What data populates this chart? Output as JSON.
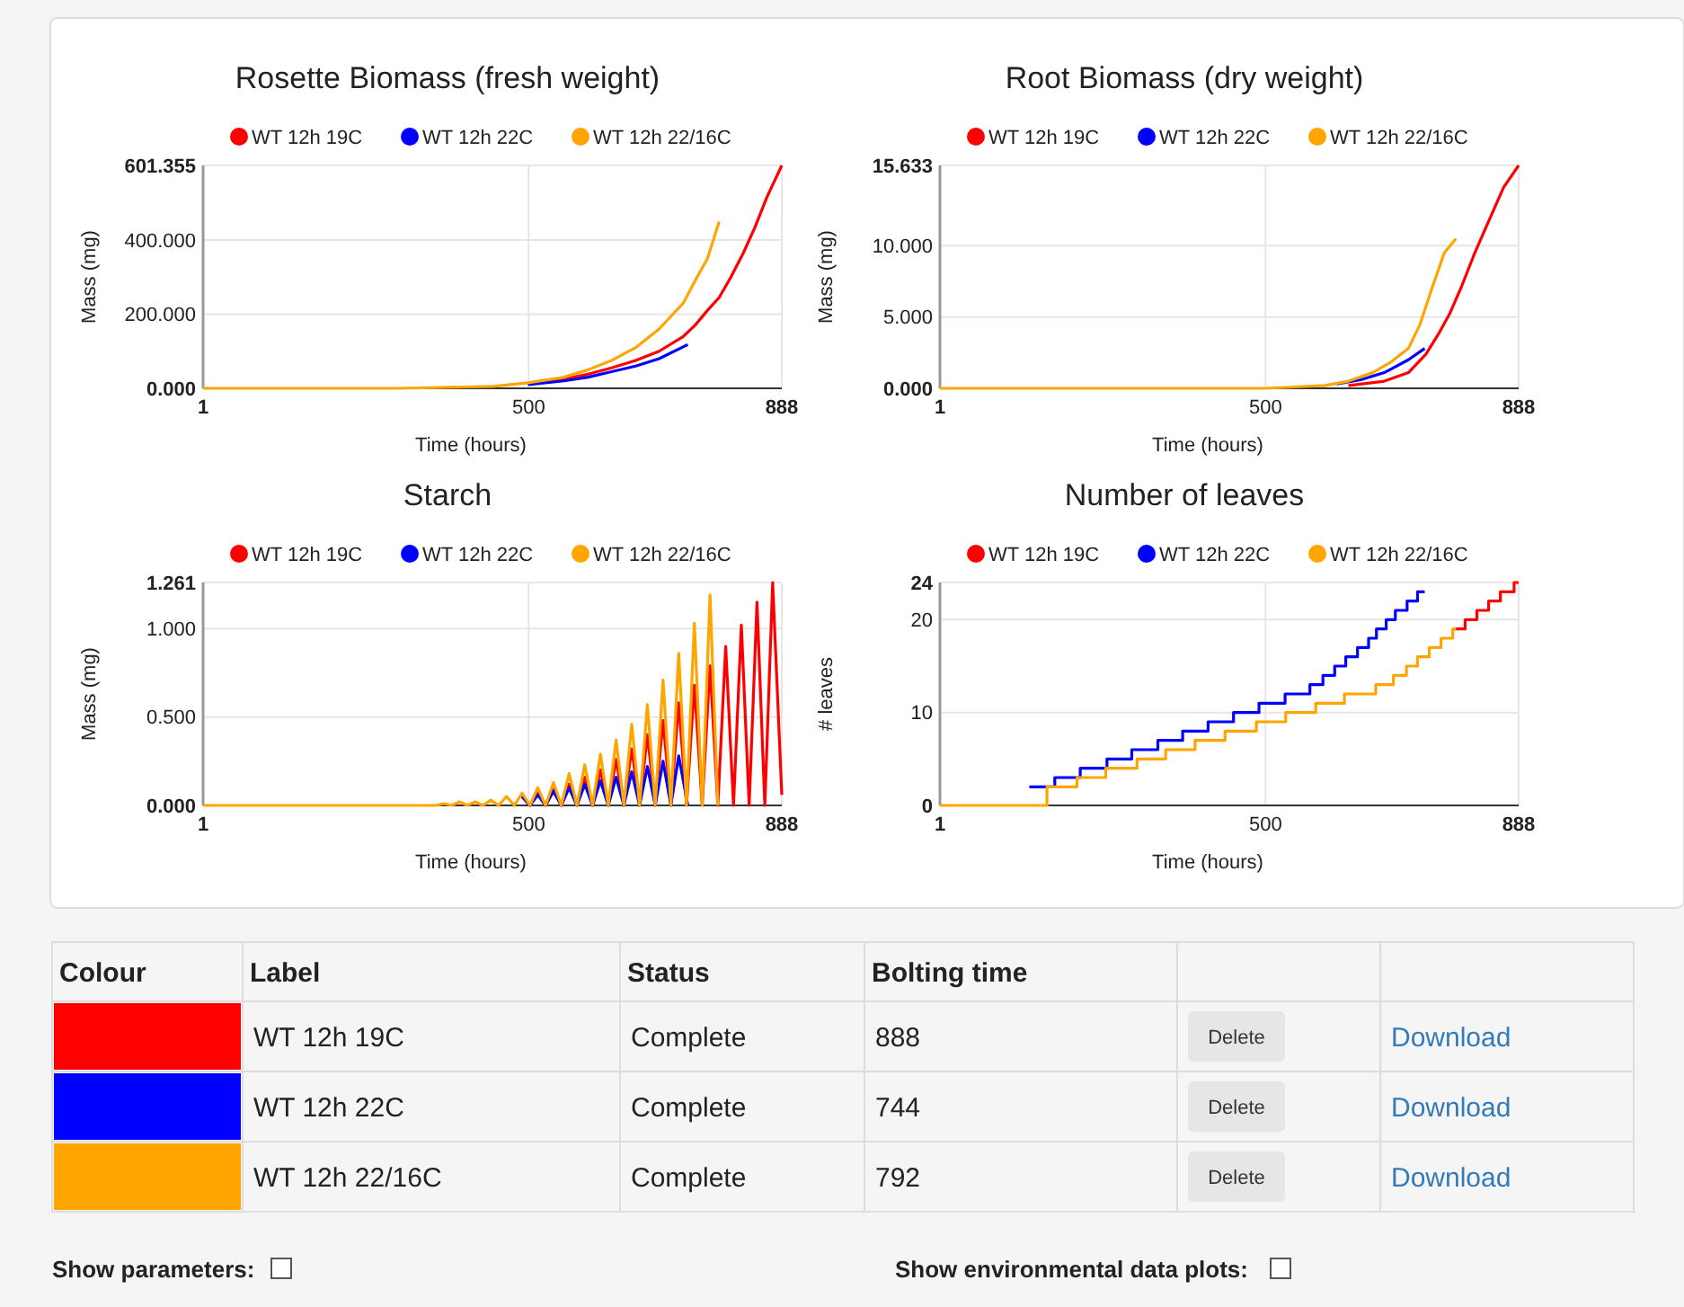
{
  "chart_data": [
    {
      "type": "line",
      "title": "Rosette Biomass (fresh weight)",
      "xlabel": "Time (hours)",
      "ylabel": "Mass (mg)",
      "legend": "top",
      "grid": true,
      "xlim": [
        1,
        888
      ],
      "xticks": [
        1,
        500,
        888
      ],
      "ylim": [
        0,
        601.355
      ],
      "yticks": [
        {
          "value": 0,
          "label": "0.000"
        },
        {
          "value": 200,
          "label": "200.000"
        },
        {
          "value": 400,
          "label": "400.000"
        },
        {
          "value": 601.355,
          "label": "601.355"
        }
      ],
      "series": [
        {
          "name": "WT 12h 19C",
          "color": "#ff0000",
          "x": [
            499,
            554,
            591,
            627,
            664,
            700,
            737,
            755,
            774,
            792,
            810,
            829,
            847,
            865,
            888
          ],
          "values": [
            13,
            25,
            38,
            55,
            75,
            100,
            140,
            170,
            210,
            245,
            300,
            365,
            435,
            515,
            601.355
          ]
        },
        {
          "name": "WT 12h 22C",
          "color": "#0000ff",
          "x": [
            499,
            554,
            591,
            627,
            664,
            700,
            744
          ],
          "values": [
            10,
            20,
            30,
            45,
            60,
            80,
            118
          ]
        },
        {
          "name": "WT 12h 22/16C",
          "color": "#ffa500",
          "x": [
            1,
            300,
            445,
            499,
            554,
            591,
            627,
            664,
            700,
            737,
            755,
            774,
            792
          ],
          "values": [
            0,
            0,
            5,
            15,
            30,
            50,
            75,
            110,
            160,
            230,
            290,
            350,
            450
          ]
        }
      ]
    },
    {
      "type": "line",
      "title": "Root Biomass (dry weight)",
      "xlabel": "Time (hours)",
      "ylabel": "Mass (mg)",
      "legend": "top",
      "grid": true,
      "xlim": [
        1,
        888
      ],
      "xticks": [
        1,
        500,
        888
      ],
      "ylim": [
        0,
        15.633
      ],
      "yticks": [
        {
          "value": 0,
          "label": "0.000"
        },
        {
          "value": 5,
          "label": "5.000"
        },
        {
          "value": 10,
          "label": "10.000"
        },
        {
          "value": 15.633,
          "label": "15.633"
        }
      ],
      "series": [
        {
          "name": "WT 12h 19C",
          "color": "#ff0000",
          "x": [
            627,
            682,
            719,
            746,
            765,
            783,
            801,
            819,
            837,
            865,
            888
          ],
          "values": [
            0.2,
            0.5,
            1.1,
            2.4,
            3.8,
            5.3,
            7.2,
            9.3,
            11.2,
            14.1,
            15.633
          ]
        },
        {
          "name": "WT 12h 22C",
          "color": "#0000ff",
          "x": [
            609,
            646,
            682,
            719,
            744
          ],
          "values": [
            0.3,
            0.6,
            1.1,
            2,
            2.8
          ]
        },
        {
          "name": "WT 12h 22/16C",
          "color": "#ffa500",
          "x": [
            1,
            500,
            591,
            627,
            664,
            691,
            719,
            737,
            755,
            774,
            792
          ],
          "values": [
            0,
            0,
            0.2,
            0.5,
            1.1,
            1.8,
            2.8,
            4.5,
            7,
            9.5,
            10.5
          ]
        }
      ]
    },
    {
      "type": "line",
      "title": "Starch",
      "xlabel": "Time (hours)",
      "ylabel": "Mass (mg)",
      "legend": "top",
      "grid": true,
      "xlim": [
        1,
        888
      ],
      "xticks": [
        1,
        500,
        888
      ],
      "ylim": [
        0,
        1.261
      ],
      "yticks": [
        {
          "value": 0,
          "label": "0.000"
        },
        {
          "value": 0.5,
          "label": "0.500"
        },
        {
          "value": 1,
          "label": "1.000"
        },
        {
          "value": 1.261,
          "label": "1.261"
        }
      ],
      "series": [
        {
          "name": "WT 12h 19C",
          "color": "#ff0000",
          "x": [
            490,
            502,
            514,
            526,
            538,
            550,
            562,
            574,
            586,
            598,
            610,
            622,
            634,
            646,
            658,
            670,
            682,
            694,
            706,
            718,
            730,
            742,
            754,
            766,
            778,
            790,
            802,
            814,
            826,
            838,
            850,
            862,
            874,
            888
          ],
          "values": [
            0.05,
            0,
            0.07,
            0,
            0.09,
            0,
            0.12,
            0,
            0.16,
            0,
            0.2,
            0,
            0.26,
            0,
            0.32,
            0,
            0.4,
            0,
            0.48,
            0,
            0.58,
            0,
            0.68,
            0,
            0.79,
            0,
            0.9,
            0,
            1.02,
            0,
            1.15,
            0,
            1.261,
            0.06
          ]
        },
        {
          "name": "WT 12h 22C",
          "color": "#0000ff",
          "x": [
            490,
            502,
            514,
            526,
            538,
            550,
            562,
            574,
            586,
            598,
            610,
            622,
            634,
            646,
            658,
            670,
            682,
            694,
            706,
            718,
            730,
            744
          ],
          "values": [
            0.05,
            0,
            0.06,
            0,
            0.08,
            0,
            0.1,
            0,
            0.12,
            0,
            0.14,
            0,
            0.16,
            0,
            0.19,
            0,
            0.22,
            0,
            0.25,
            0,
            0.28,
            0
          ]
        },
        {
          "name": "WT 12h 22/16C",
          "color": "#ffa500",
          "x": [
            1,
            358,
            370,
            382,
            394,
            406,
            418,
            430,
            442,
            454,
            466,
            478,
            490,
            502,
            514,
            526,
            538,
            550,
            562,
            574,
            586,
            598,
            610,
            622,
            634,
            646,
            658,
            670,
            682,
            694,
            706,
            718,
            730,
            742,
            754,
            766,
            778,
            790
          ],
          "values": [
            0,
            0,
            0.01,
            0,
            0.02,
            0,
            0.02,
            0,
            0.03,
            0,
            0.05,
            0,
            0.07,
            0,
            0.1,
            0,
            0.13,
            0,
            0.18,
            0,
            0.23,
            0,
            0.29,
            0,
            0.37,
            0,
            0.46,
            0,
            0.57,
            0,
            0.71,
            0,
            0.86,
            0,
            1.03,
            0,
            1.19,
            0
          ]
        }
      ]
    },
    {
      "type": "step",
      "title": "Number of leaves",
      "xlabel": "Time (hours)",
      "ylabel": "# leaves",
      "legend": "top",
      "grid": true,
      "xlim": [
        1,
        888
      ],
      "xticks": [
        1,
        500,
        888
      ],
      "ylim": [
        0,
        24
      ],
      "yticks": [
        0,
        10,
        20,
        24
      ],
      "series": [
        {
          "name": "WT 12h 19C",
          "color": "#ff0000",
          "x": [
            787,
            806,
            824,
            842,
            860,
            881,
            888
          ],
          "values": [
            19,
            20,
            21,
            22,
            23,
            24,
            24
          ]
        },
        {
          "name": "WT 12h 22C",
          "color": "#0000ff",
          "x": [
            138,
            177,
            216,
            257,
            295,
            335,
            373,
            412,
            451,
            490,
            530,
            568,
            588,
            606,
            623,
            641,
            658,
            670,
            685,
            699,
            717,
            733,
            744
          ],
          "values": [
            2,
            3,
            4,
            5,
            6,
            7,
            8,
            9,
            10,
            11,
            12,
            13,
            14,
            15,
            16,
            17,
            18,
            19,
            20,
            21,
            22,
            23,
            23
          ]
        },
        {
          "name": "WT 12h 22/16C",
          "color": "#ffa500",
          "x": [
            1,
            165,
            211,
            255,
            303,
            347,
            392,
            438,
            486,
            531,
            577,
            621,
            669,
            696,
            716,
            733,
            751,
            769,
            787,
            792
          ],
          "values": [
            0,
            2,
            3,
            4,
            5,
            6,
            7,
            8,
            9,
            10,
            11,
            12,
            13,
            14,
            15,
            16,
            17,
            18,
            19,
            19
          ]
        }
      ]
    },
    {
      "type": "other",
      "categories": [
        "WT 12h 19C",
        "WT 12h 22C",
        "WT 12h 22/16C"
      ],
      "colors": [
        "#ff0000",
        "#0000ff",
        "#ffa500"
      ],
      "values": [
        888,
        744,
        792
      ],
      "data_labels": true,
      "annotations": [
        "Colour",
        "Label",
        "Status",
        "Bolting time",
        "Complete",
        "Complete",
        "Complete",
        "Delete",
        "Delete",
        "Delete",
        "Download",
        "Download",
        "Download",
        "Show parameters:",
        "Show environmental data plots:"
      ]
    }
  ]
}
